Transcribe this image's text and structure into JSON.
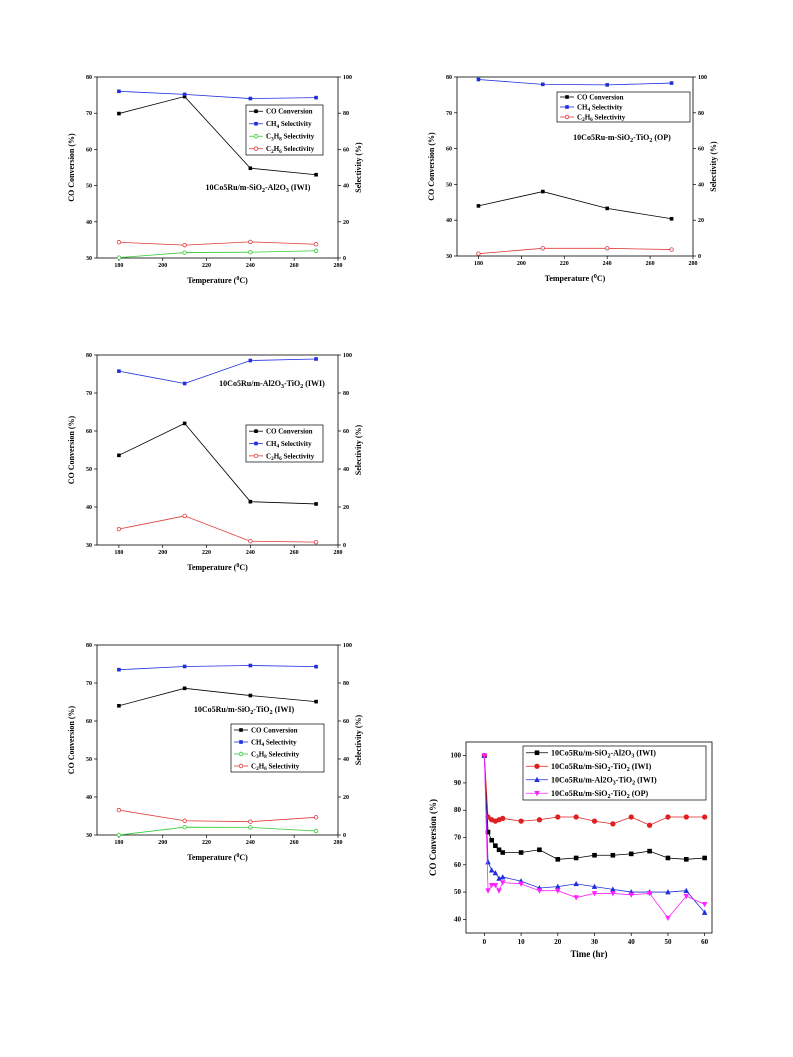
{
  "chart_data": [
    {
      "type": "line",
      "annotation": "10Co5Ru/m-SiO2-Al2O3 (IWI)",
      "xlabel": "Temperature (0C)",
      "ylabel": "CO Conversion (%)",
      "y2label": "Selectivity (%)",
      "xlim": [
        170,
        280
      ],
      "xticks": [
        180,
        200,
        220,
        240,
        260,
        280
      ],
      "ylim": [
        30,
        80
      ],
      "yticks": [
        30,
        40,
        50,
        60,
        70,
        80
      ],
      "y2lim": [
        0,
        100
      ],
      "y2ticks": [
        0,
        20,
        40,
        60,
        80,
        100
      ],
      "x": [
        180,
        210,
        240,
        270
      ],
      "legend_position": "right",
      "series": [
        {
          "name": "CO Conversion",
          "axis": "left",
          "color": "#000000",
          "marker": "square",
          "values": [
            69.9,
            74.6,
            54.8,
            53.0
          ]
        },
        {
          "name": "CH4 Selectivity",
          "axis": "right",
          "color": "#1f2fe0",
          "marker": "square",
          "values": [
            92.1,
            90.4,
            88.1,
            88.6
          ]
        },
        {
          "name": "C3H8 Selectivity",
          "axis": "right",
          "color": "#33cc33",
          "marker": "circle-open",
          "values": [
            0.2,
            3.0,
            3.2,
            4.0
          ]
        },
        {
          "name": "C2H6 Selectivity",
          "axis": "right",
          "color": "#e03a3a",
          "marker": "circle-open",
          "values": [
            8.7,
            7.1,
            8.9,
            7.6
          ]
        }
      ]
    },
    {
      "type": "line",
      "annotation": "10Co5Ru-m-SiO2-TiO2 (OP)",
      "xlabel": "Temperature (0C)",
      "ylabel": "CO Conversion (%)",
      "y2label": "Selectivity (%)",
      "xlim": [
        170,
        280
      ],
      "xticks": [
        180,
        200,
        220,
        240,
        260,
        280
      ],
      "ylim": [
        30,
        80
      ],
      "yticks": [
        30,
        40,
        50,
        60,
        70,
        80
      ],
      "y2lim": [
        0,
        100
      ],
      "y2ticks": [
        0,
        20,
        40,
        60,
        80,
        100
      ],
      "x": [
        180,
        210,
        240,
        270
      ],
      "legend_position": "top-right",
      "series": [
        {
          "name": "CO Conversion",
          "axis": "left",
          "color": "#000000",
          "marker": "square",
          "values": [
            44.0,
            48.0,
            43.3,
            40.4
          ]
        },
        {
          "name": "CH4 Selectivity",
          "axis": "right",
          "color": "#1f2fe0",
          "marker": "square",
          "values": [
            98.6,
            95.9,
            95.6,
            96.6
          ]
        },
        {
          "name": "C2H6 Selectivity",
          "axis": "right",
          "color": "#e03a3a",
          "marker": "circle-open",
          "values": [
            1.3,
            4.3,
            4.3,
            3.6
          ]
        }
      ]
    },
    {
      "type": "line",
      "annotation": "10Co5Ru/m-Al2O3-TiO2 (IWI)",
      "xlabel": "Temperature (0C)",
      "ylabel": "CO Conversion (%)",
      "y2label": "Selectivity (%)",
      "xlim": [
        170,
        280
      ],
      "xticks": [
        180,
        200,
        220,
        240,
        260,
        280
      ],
      "ylim": [
        30,
        80
      ],
      "yticks": [
        30,
        40,
        50,
        60,
        70,
        80
      ],
      "y2lim": [
        0,
        100
      ],
      "y2ticks": [
        0,
        20,
        40,
        60,
        80,
        100
      ],
      "x": [
        180,
        210,
        240,
        270
      ],
      "legend_position": "right",
      "series": [
        {
          "name": "CO Conversion",
          "axis": "left",
          "color": "#000000",
          "marker": "square",
          "values": [
            53.6,
            62.0,
            41.4,
            40.8
          ]
        },
        {
          "name": "CH4 Selectivity",
          "axis": "right",
          "color": "#1f2fe0",
          "marker": "square",
          "values": [
            91.5,
            85.0,
            97.1,
            97.9
          ]
        },
        {
          "name": "C2H6 Selectivity",
          "axis": "right",
          "color": "#e03a3a",
          "marker": "circle-open",
          "values": [
            8.4,
            15.3,
            2.0,
            1.5
          ]
        }
      ]
    },
    {
      "type": "line",
      "annotation": "10Co5Ru/m-SiO2-TiO2 (IWI)",
      "xlabel": "Temperature (0C)",
      "ylabel": "CO Conversion (%)",
      "y2label": "Selectivity (%)",
      "xlim": [
        170,
        280
      ],
      "xticks": [
        180,
        200,
        220,
        240,
        260,
        280
      ],
      "ylim": [
        30,
        80
      ],
      "yticks": [
        30,
        40,
        50,
        60,
        70,
        80
      ],
      "y2lim": [
        0,
        100
      ],
      "y2ticks": [
        0,
        20,
        40,
        60,
        80,
        100
      ],
      "x": [
        180,
        210,
        240,
        270
      ],
      "legend_position": "right",
      "series": [
        {
          "name": "CO Conversion",
          "axis": "left",
          "color": "#000000",
          "marker": "square",
          "values": [
            64.0,
            68.6,
            66.7,
            65.1
          ]
        },
        {
          "name": "CH4 Selectivity",
          "axis": "right",
          "color": "#1f2fe0",
          "marker": "square",
          "values": [
            87.0,
            88.7,
            89.2,
            88.6
          ]
        },
        {
          "name": "C3H8 Selectivity",
          "axis": "right",
          "color": "#33cc33",
          "marker": "circle-open",
          "values": [
            0.0,
            4.1,
            4.0,
            2.1
          ]
        },
        {
          "name": "C2H6 Selectivity",
          "axis": "right",
          "color": "#e03a3a",
          "marker": "circle-open",
          "values": [
            13.1,
            7.5,
            7.0,
            9.3
          ]
        }
      ]
    },
    {
      "type": "line",
      "xlabel": "Time (hr)",
      "ylabel": "CO Conversion (%)",
      "xlim": [
        -5,
        62
      ],
      "xticks": [
        0,
        10,
        20,
        30,
        40,
        50,
        60
      ],
      "ylim": [
        35,
        105
      ],
      "yticks": [
        40,
        50,
        60,
        70,
        80,
        90,
        100
      ],
      "legend_position": "top-right",
      "series": [
        {
          "name": "10Co5Ru/m-SiO2-Al2O3 (IWI)",
          "color": "#000000",
          "marker": "square",
          "x": [
            0,
            1,
            2,
            3,
            4,
            5,
            10,
            15,
            20,
            25,
            30,
            35,
            40,
            45,
            50,
            55,
            60
          ],
          "values": [
            100,
            72,
            69,
            67,
            65.5,
            64.5,
            64.5,
            65.5,
            62,
            62.5,
            63.5,
            63.5,
            64,
            65,
            62.5,
            62,
            62.5
          ]
        },
        {
          "name": "10Co5Ru/m-SiO2-TiO2 (IWI)",
          "color": "#e02020",
          "marker": "circle",
          "x": [
            0,
            1,
            2,
            3,
            4,
            5,
            10,
            15,
            20,
            25,
            30,
            35,
            40,
            45,
            50,
            55,
            60
          ],
          "values": [
            100,
            77.5,
            76.5,
            76,
            76.5,
            77,
            76,
            76.5,
            77.5,
            77.5,
            76,
            75,
            77.5,
            74.5,
            77.5,
            77.5,
            77.5
          ]
        },
        {
          "name": "10Co5Ru/m-Al2O3-TiO2 (IWI)",
          "color": "#1f2fe0",
          "marker": "triangle-up",
          "x": [
            0,
            1,
            2,
            3,
            4,
            5,
            10,
            15,
            20,
            25,
            30,
            35,
            40,
            45,
            50,
            55,
            60
          ],
          "values": [
            100,
            61,
            58,
            57,
            55,
            55.5,
            54,
            51.5,
            52,
            53,
            52,
            51,
            50,
            50,
            50,
            50.5,
            42.5
          ]
        },
        {
          "name": "10Co5Ru/m-SiO2-TiO2 (OP)",
          "color": "#ff22ff",
          "marker": "triangle-down",
          "x": [
            0,
            1,
            2,
            3,
            4,
            5,
            10,
            15,
            20,
            25,
            30,
            35,
            40,
            45,
            50,
            55,
            60
          ],
          "values": [
            100,
            50.5,
            52.5,
            52.5,
            50.5,
            53.5,
            53,
            50.5,
            50.5,
            48,
            49.5,
            49.5,
            49,
            49.5,
            40.5,
            48.5,
            45.5
          ]
        }
      ]
    }
  ]
}
